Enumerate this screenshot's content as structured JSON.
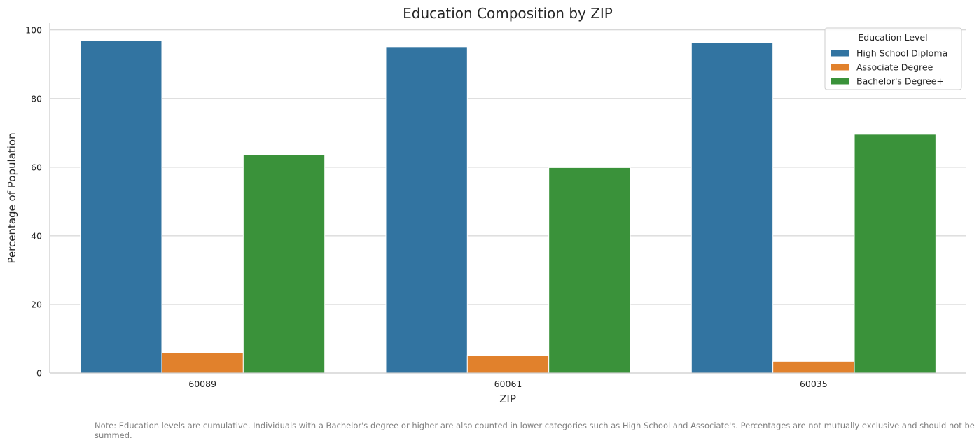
{
  "chart_data": {
    "type": "bar",
    "title": "Education Composition by ZIP",
    "xlabel": "ZIP",
    "ylabel": "Percentage of Population",
    "categories": [
      "60089",
      "60061",
      "60035"
    ],
    "series": [
      {
        "name": "High School Diploma",
        "color": "#3274a1",
        "values": [
          96.9,
          95.1,
          96.2
        ]
      },
      {
        "name": "Associate Degree",
        "color": "#e1812c",
        "values": [
          5.9,
          5.1,
          3.4
        ]
      },
      {
        "name": "Bachelor's Degree+",
        "color": "#3a923a",
        "values": [
          63.6,
          59.9,
          69.6
        ]
      }
    ],
    "ylim": [
      0,
      102
    ],
    "yticks": [
      0,
      20,
      40,
      60,
      80,
      100
    ],
    "grid": "horizontal",
    "legend": {
      "title": "Education Level",
      "placement": "top-right"
    }
  },
  "note": "Note: Education levels are cumulative. Individuals with a Bachelor's degree or higher are also counted in lower categories such as High School and Associate's. Percentages are not mutually exclusive and should not be summed."
}
